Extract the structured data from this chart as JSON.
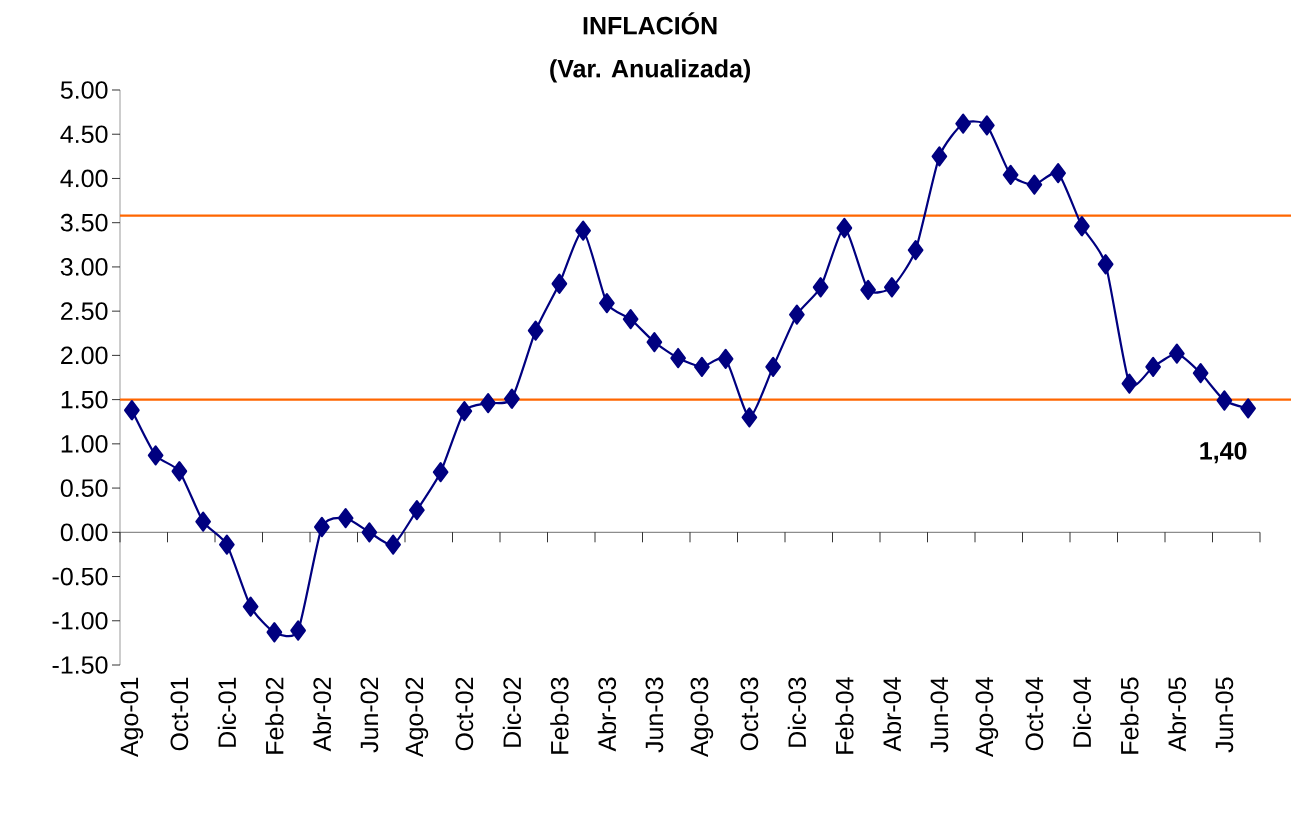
{
  "chart_data": {
    "type": "line",
    "title": "INFLACIÓN",
    "subtitle": "(Var. Anualizada)",
    "categories": [
      "Ago-01",
      null,
      "Oct-01",
      null,
      "Dic-01",
      null,
      "Feb-02",
      null,
      "Abr-02",
      null,
      "Jun-02",
      null,
      "Ago-02",
      null,
      "Oct-02",
      null,
      "Dic-02",
      null,
      "Feb-03",
      null,
      "Abr-03",
      null,
      "Jun-03",
      null,
      "Ago-03",
      null,
      "Oct-03",
      null,
      "Dic-03",
      null,
      "Feb-04",
      null,
      "Abr-04",
      null,
      "Jun-04",
      null,
      "Ago-04",
      null,
      "Oct-04",
      null,
      "Dic-04",
      null,
      "Feb-05",
      null,
      "Abr-05",
      null,
      "Jun-05",
      null
    ],
    "series": [
      {
        "color": "#000080",
        "values": [
          1.38,
          0.87,
          0.69,
          0.12,
          -0.14,
          -0.84,
          -1.13,
          -1.11,
          0.06,
          0.16,
          0.0,
          -0.14,
          0.25,
          0.68,
          1.37,
          1.46,
          1.51,
          2.28,
          2.81,
          3.41,
          2.59,
          2.41,
          2.15,
          1.97,
          1.87,
          1.96,
          1.3,
          1.87,
          2.46,
          2.77,
          3.44,
          2.74,
          2.77,
          3.19,
          4.25,
          4.62,
          4.6,
          4.04,
          3.93,
          4.06,
          3.46,
          3.03,
          1.68,
          1.87,
          2.02,
          1.8,
          1.49,
          1.4
        ]
      }
    ],
    "ylim": [
      -1.5,
      5.0
    ],
    "yticks": [
      {
        "value": -1.5,
        "label": "-1.50"
      },
      {
        "value": -1.0,
        "label": "-1.00"
      },
      {
        "value": -0.5,
        "label": "-0.50"
      },
      {
        "value": 0,
        "label": "0.00"
      },
      {
        "value": 0.5,
        "label": "0.50"
      },
      {
        "value": 1.0,
        "label": "1.00"
      },
      {
        "value": 1.5,
        "label": "1.50"
      },
      {
        "value": 2.0,
        "label": "2.00"
      },
      {
        "value": 2.5,
        "label": "2.50"
      },
      {
        "value": 3.0,
        "label": "3.00"
      },
      {
        "value": 3.5,
        "label": "3.50"
      },
      {
        "value": 4.0,
        "label": "4.00"
      },
      {
        "value": 4.5,
        "label": "4.50"
      },
      {
        "value": 5.0,
        "label": "5.00"
      }
    ],
    "ref_lines": [
      {
        "axis": "y",
        "value": 3.58,
        "color": "#ff6600"
      },
      {
        "axis": "y",
        "value": 1.5,
        "color": "#ff6600"
      }
    ],
    "annotations": [
      {
        "text": "1,40",
        "y": 1.4
      }
    ],
    "marker": "diamond",
    "line_style": "solid",
    "grid": false
  }
}
